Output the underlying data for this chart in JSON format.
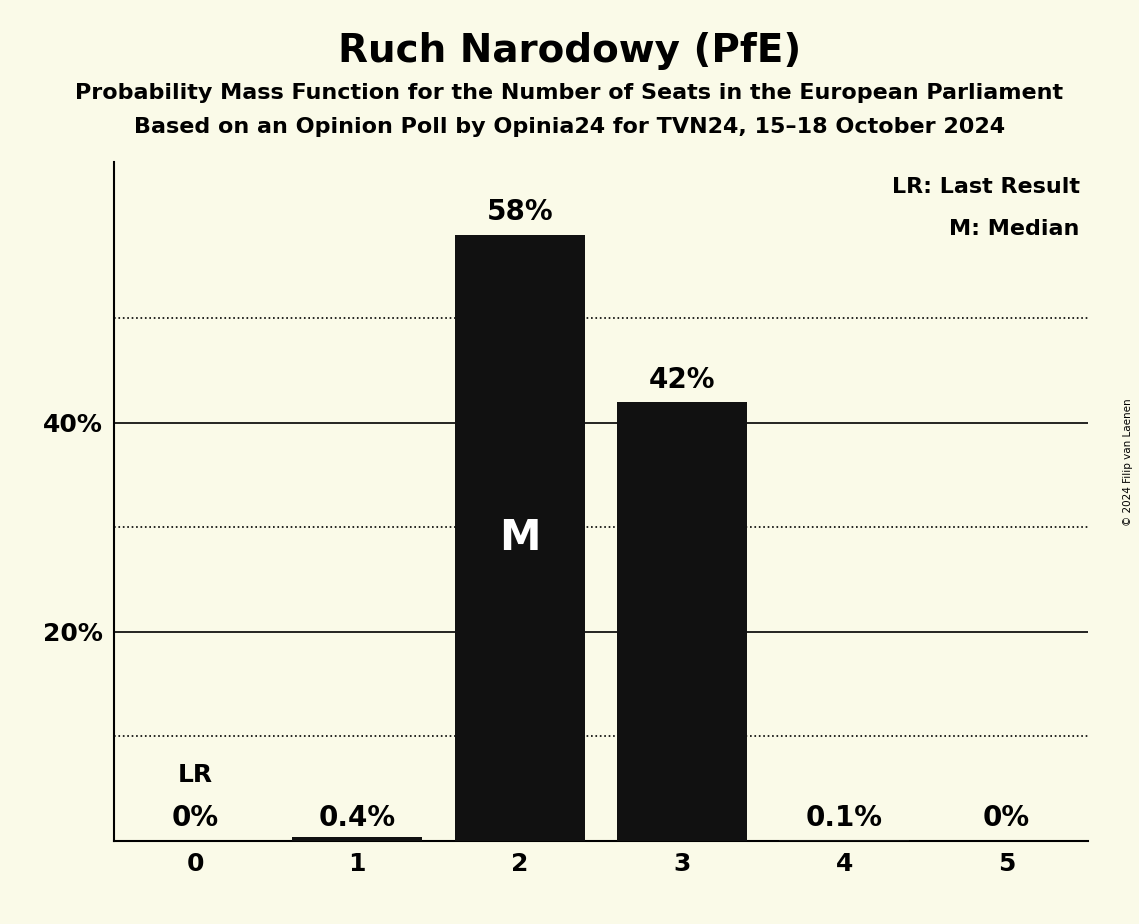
{
  "title": "Ruch Narodowy (PfE)",
  "subtitle1": "Probability Mass Function for the Number of Seats in the European Parliament",
  "subtitle2": "Based on an Opinion Poll by Opinia24 for TVN24, 15–18 October 2024",
  "copyright": "© 2024 Filip van Laenen",
  "categories": [
    0,
    1,
    2,
    3,
    4,
    5
  ],
  "values": [
    0.0,
    0.004,
    0.58,
    0.42,
    0.001,
    0.0
  ],
  "bar_labels": [
    "0%",
    "0.4%",
    "58%",
    "42%",
    "0.1%",
    "0%"
  ],
  "bar_color": "#111111",
  "background_color": "#fafae8",
  "median_bar": 2,
  "median_label": "M",
  "lr_bar": 0,
  "lr_label": "LR",
  "yticks": [
    0.2,
    0.4
  ],
  "ytick_labels": [
    "20%",
    "40%"
  ],
  "dotted_lines": [
    0.1,
    0.3,
    0.5
  ],
  "solid_lines": [
    0.2,
    0.4
  ],
  "legend_lr": "LR: Last Result",
  "legend_m": "M: Median",
  "title_fontsize": 28,
  "subtitle_fontsize": 16,
  "bar_label_fontsize": 20,
  "axis_tick_fontsize": 18,
  "legend_fontsize": 16,
  "annotation_fontsize": 18,
  "ylim": [
    0,
    0.65
  ]
}
